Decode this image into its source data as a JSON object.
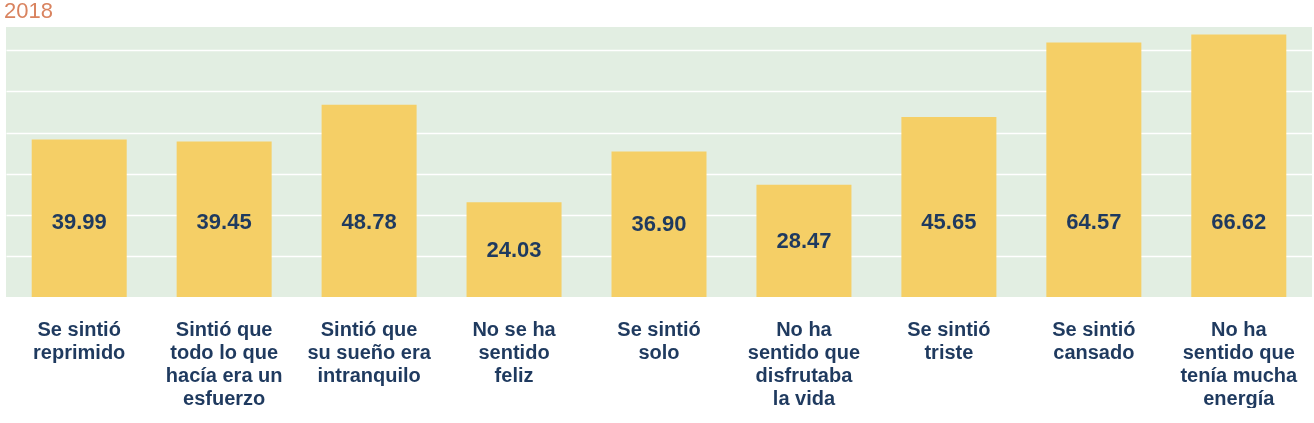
{
  "chart_data": {
    "type": "bar",
    "title": "2018",
    "categories": [
      "Se sintió reprimido",
      "Sintió que todo lo que hacía era un esfuerzo",
      "Sintió que su sueño era intranquilo",
      "No se ha sentido feliz",
      "Se sintió solo",
      "No ha sentido que disfrutaba la vida",
      "Se sintió triste",
      "Se sintió cansado",
      "No ha sentido que tenía mucha energía"
    ],
    "values": [
      39.99,
      39.45,
      48.78,
      24.03,
      36.9,
      28.47,
      45.65,
      64.57,
      66.62
    ],
    "value_labels": [
      "39.99",
      "39.45",
      "48.78",
      "24.03",
      "36.90",
      "28.47",
      "45.65",
      "64.57",
      "66.62"
    ],
    "color": "#f5cf66",
    "ylim": [
      0,
      68.5
    ],
    "yticks": [
      {
        "value": 10.4,
        "label": null
      },
      {
        "value": 20.8,
        "label": null
      },
      {
        "value": 31.2,
        "label": null
      },
      {
        "value": 41.6,
        "label": null
      },
      {
        "value": 52.2,
        "label": null
      },
      {
        "value": 62.6,
        "label": null
      }
    ],
    "grid": "y",
    "tick_labels": "x"
  }
}
